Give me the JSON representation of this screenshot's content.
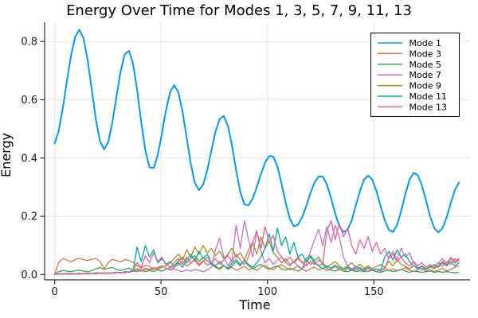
{
  "colors": {
    "background": "#FFFFFF",
    "grid": "#E4E4E4",
    "axis": "#2F2F2F",
    "text": "#191919",
    "legend_border": "#000000",
    "legend_background": "#FFFFFF"
  },
  "chart_data": {
    "type": "line",
    "title": "Energy Over Time for Modes 1, 3, 5, 7, 9, 11, 13",
    "xlabel": "Time",
    "ylabel": "Energy",
    "xlim": [
      -4.7,
      195.2
    ],
    "ylim": [
      -0.018,
      0.866
    ],
    "x_ticks": [
      0,
      50,
      100,
      150
    ],
    "x_tick_labels": [
      "0",
      "50",
      "100",
      "150"
    ],
    "y_ticks": [
      0.0,
      0.2,
      0.4,
      0.6,
      0.8
    ],
    "y_tick_labels": [
      "0.0",
      "0.2",
      "0.4",
      "0.6",
      "0.8"
    ],
    "grid": true,
    "legend_position": "top-right",
    "x_start": 0,
    "x_end": 190,
    "series": [
      {
        "name": "Mode 1",
        "color": "#009AFA",
        "values": [
          0.45,
          0.494,
          0.572,
          0.666,
          0.754,
          0.817,
          0.84,
          0.812,
          0.737,
          0.635,
          0.533,
          0.458,
          0.43,
          0.455,
          0.522,
          0.612,
          0.697,
          0.756,
          0.768,
          0.724,
          0.634,
          0.523,
          0.425,
          0.368,
          0.366,
          0.41,
          0.484,
          0.565,
          0.627,
          0.65,
          0.626,
          0.56,
          0.47,
          0.38,
          0.314,
          0.29,
          0.309,
          0.359,
          0.426,
          0.491,
          0.534,
          0.544,
          0.51,
          0.442,
          0.358,
          0.284,
          0.241,
          0.238,
          0.261,
          0.3,
          0.345,
          0.384,
          0.407,
          0.405,
          0.371,
          0.312,
          0.247,
          0.192,
          0.166,
          0.171,
          0.197,
          0.236,
          0.28,
          0.316,
          0.337,
          0.336,
          0.309,
          0.262,
          0.21,
          0.167,
          0.146,
          0.153,
          0.186,
          0.236,
          0.287,
          0.326,
          0.34,
          0.326,
          0.287,
          0.236,
          0.187,
          0.153,
          0.146,
          0.17,
          0.219,
          0.276,
          0.325,
          0.349,
          0.342,
          0.307,
          0.255,
          0.2,
          0.16,
          0.145,
          0.159,
          0.196,
          0.245,
          0.29,
          0.316
        ]
      },
      {
        "name": "Mode 3",
        "color": "#E36F47",
        "values": [
          0.001,
          0.042,
          0.055,
          0.05,
          0.044,
          0.052,
          0.056,
          0.051,
          0.048,
          0.053,
          0.055,
          0.046,
          0.02,
          0.041,
          0.052,
          0.048,
          0.044,
          0.051,
          0.049,
          0.042,
          0.03,
          0.022,
          0.032,
          0.028,
          0.016,
          0.025,
          0.03,
          0.022,
          0.016,
          0.025,
          0.034,
          0.045,
          0.03,
          0.038,
          0.055,
          0.035,
          0.048,
          0.032,
          0.04,
          0.028,
          0.022,
          0.032,
          0.018,
          0.025,
          0.015,
          0.021,
          0.028,
          0.016,
          0.022,
          0.014,
          0.025,
          0.032,
          0.022,
          0.016,
          0.028,
          0.034,
          0.024,
          0.016,
          0.022,
          0.028,
          0.018,
          0.012,
          0.02,
          0.026,
          0.016,
          0.022,
          0.014,
          0.02,
          0.028,
          0.018,
          0.012,
          0.02,
          0.015,
          0.022,
          0.012,
          0.018,
          0.025,
          0.014,
          0.01,
          0.018,
          0.024,
          0.014,
          0.02,
          0.012,
          0.018,
          0.024,
          0.015,
          0.01,
          0.016,
          0.022,
          0.012,
          0.018,
          0.01,
          0.015,
          0.022,
          0.012,
          0.018,
          0.025,
          0.03
        ]
      },
      {
        "name": "Mode 5",
        "color": "#3EA44E",
        "values": [
          0.001,
          0.01,
          0.014,
          0.012,
          0.01,
          0.013,
          0.015,
          0.012,
          0.01,
          0.014,
          0.02,
          0.024,
          0.018,
          0.022,
          0.025,
          0.018,
          0.014,
          0.018,
          0.022,
          0.016,
          0.02,
          0.015,
          0.01,
          0.014,
          0.01,
          0.016,
          0.012,
          0.018,
          0.024,
          0.03,
          0.046,
          0.06,
          0.04,
          0.055,
          0.065,
          0.045,
          0.058,
          0.048,
          0.035,
          0.025,
          0.018,
          0.03,
          0.022,
          0.04,
          0.052,
          0.035,
          0.048,
          0.03,
          0.02,
          0.028,
          0.035,
          0.025,
          0.018,
          0.025,
          0.03,
          0.02,
          0.015,
          0.022,
          0.016,
          0.012,
          0.02,
          0.055,
          0.065,
          0.048,
          0.06,
          0.035,
          0.022,
          0.015,
          0.012,
          0.018,
          0.012,
          0.01,
          0.015,
          0.01,
          0.014,
          0.01,
          0.012,
          0.016,
          0.01,
          0.008,
          0.012,
          0.015,
          0.01,
          0.014,
          0.018,
          0.012,
          0.008,
          0.012,
          0.01,
          0.008,
          0.01,
          0.012,
          0.008,
          0.01,
          0.008,
          0.01,
          0.008,
          0.006,
          0.008
        ]
      },
      {
        "name": "Mode 7",
        "color": "#C371D2",
        "values": [
          0.001,
          0.002,
          0.003,
          0.002,
          0.004,
          0.003,
          0.002,
          0.004,
          0.003,
          0.005,
          0.004,
          0.006,
          0.005,
          0.004,
          0.006,
          0.008,
          0.006,
          0.008,
          0.01,
          0.012,
          0.01,
          0.015,
          0.022,
          0.018,
          0.025,
          0.02,
          0.03,
          0.022,
          0.015,
          0.02,
          0.014,
          0.01,
          0.016,
          0.012,
          0.018,
          0.014,
          0.01,
          0.015,
          0.025,
          0.085,
          0.125,
          0.06,
          0.03,
          0.05,
          0.17,
          0.09,
          0.185,
          0.12,
          0.06,
          0.15,
          0.08,
          0.04,
          0.055,
          0.035,
          0.05,
          0.06,
          0.04,
          0.03,
          0.045,
          0.03,
          0.02,
          0.035,
          0.08,
          0.12,
          0.155,
          0.1,
          0.165,
          0.11,
          0.17,
          0.13,
          0.06,
          0.03,
          0.02,
          0.015,
          0.025,
          0.015,
          0.01,
          0.015,
          0.02,
          0.012,
          0.018,
          0.06,
          0.08,
          0.05,
          0.09,
          0.06,
          0.075,
          0.04,
          0.025,
          0.015,
          0.02,
          0.03,
          0.02,
          0.04,
          0.055,
          0.035,
          0.06,
          0.045,
          0.055
        ]
      },
      {
        "name": "Mode 9",
        "color": "#AC8E18",
        "values": [
          0.001,
          0.002,
          0.002,
          0.003,
          0.002,
          0.003,
          0.004,
          0.003,
          0.004,
          0.005,
          0.004,
          0.005,
          0.006,
          0.005,
          0.006,
          0.008,
          0.007,
          0.008,
          0.01,
          0.012,
          0.015,
          0.012,
          0.018,
          0.015,
          0.02,
          0.018,
          0.025,
          0.03,
          0.04,
          0.055,
          0.07,
          0.05,
          0.085,
          0.06,
          0.095,
          0.07,
          0.1,
          0.075,
          0.09,
          0.065,
          0.08,
          0.055,
          0.07,
          0.09,
          0.06,
          0.075,
          0.05,
          0.085,
          0.11,
          0.07,
          0.13,
          0.09,
          0.115,
          0.075,
          0.06,
          0.04,
          0.055,
          0.035,
          0.045,
          0.06,
          0.04,
          0.05,
          0.035,
          0.045,
          0.03,
          0.04,
          0.025,
          0.035,
          0.045,
          0.03,
          0.02,
          0.03,
          0.04,
          0.025,
          0.035,
          0.022,
          0.03,
          0.02,
          0.028,
          0.035,
          0.025,
          0.045,
          0.03,
          0.05,
          0.035,
          0.028,
          0.02,
          0.03,
          0.022,
          0.03,
          0.02,
          0.028,
          0.02,
          0.03,
          0.045,
          0.03,
          0.055,
          0.04,
          0.05
        ]
      },
      {
        "name": "Mode 11",
        "color": "#00AAAE",
        "values": [
          0.001,
          0.003,
          0.002,
          0.004,
          0.003,
          0.002,
          0.004,
          0.003,
          0.005,
          0.004,
          0.006,
          0.005,
          0.004,
          0.006,
          0.005,
          0.008,
          0.006,
          0.01,
          0.008,
          0.012,
          0.095,
          0.045,
          0.1,
          0.06,
          0.085,
          0.04,
          0.055,
          0.035,
          0.045,
          0.03,
          0.04,
          0.025,
          0.05,
          0.07,
          0.045,
          0.08,
          0.055,
          0.07,
          0.04,
          0.03,
          0.045,
          0.03,
          0.02,
          0.03,
          0.045,
          0.03,
          0.05,
          0.035,
          0.025,
          0.04,
          0.06,
          0.09,
          0.14,
          0.08,
          0.16,
          0.1,
          0.13,
          0.07,
          0.11,
          0.06,
          0.07,
          0.045,
          0.06,
          0.04,
          0.03,
          0.02,
          0.03,
          0.022,
          0.032,
          0.024,
          0.018,
          0.025,
          0.018,
          0.028,
          0.02,
          0.015,
          0.022,
          0.015,
          0.02,
          0.014,
          0.06,
          0.08,
          0.05,
          0.085,
          0.06,
          0.07,
          0.045,
          0.03,
          0.02,
          0.028,
          0.018,
          0.025,
          0.035,
          0.025,
          0.04,
          0.03,
          0.045,
          0.03,
          0.04
        ]
      },
      {
        "name": "Mode 13",
        "color": "#ED5E93",
        "values": [
          0.001,
          0.002,
          0.002,
          0.003,
          0.002,
          0.003,
          0.002,
          0.004,
          0.003,
          0.004,
          0.003,
          0.005,
          0.004,
          0.006,
          0.005,
          0.006,
          0.008,
          0.006,
          0.01,
          0.015,
          0.04,
          0.025,
          0.065,
          0.04,
          0.075,
          0.045,
          0.06,
          0.035,
          0.025,
          0.04,
          0.055,
          0.035,
          0.06,
          0.04,
          0.05,
          0.03,
          0.045,
          0.06,
          0.04,
          0.055,
          0.035,
          0.05,
          0.065,
          0.045,
          0.07,
          0.05,
          0.035,
          0.06,
          0.11,
          0.15,
          0.09,
          0.165,
          0.11,
          0.135,
          0.08,
          0.06,
          0.045,
          0.06,
          0.04,
          0.055,
          0.04,
          0.03,
          0.045,
          0.035,
          0.05,
          0.04,
          0.15,
          0.185,
          0.12,
          0.175,
          0.13,
          0.16,
          0.1,
          0.07,
          0.12,
          0.09,
          0.13,
          0.08,
          0.11,
          0.07,
          0.09,
          0.055,
          0.07,
          0.045,
          0.06,
          0.04,
          0.03,
          0.045,
          0.03,
          0.04,
          0.025,
          0.035,
          0.025,
          0.04,
          0.03,
          0.045,
          0.035,
          0.055,
          0.045
        ]
      }
    ]
  }
}
